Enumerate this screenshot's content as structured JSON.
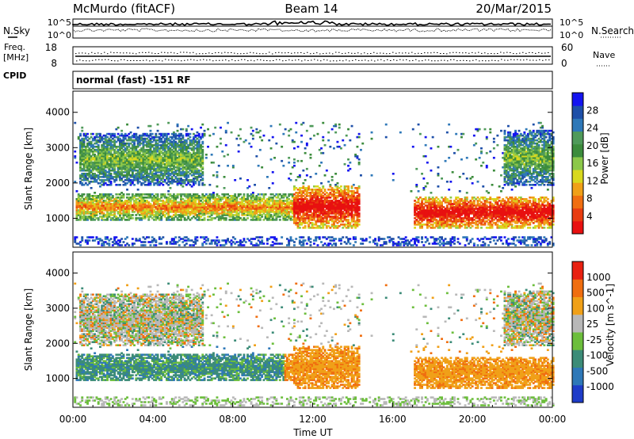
{
  "header": {
    "site": "McMurdo (fitACF)",
    "beam": "Beam 14",
    "date": "20/Mar/2015"
  },
  "noise_panel": {
    "left_label": "N.Sky",
    "right_label": "N.Search",
    "ticks_left": [
      "10^5",
      "10^0"
    ],
    "ticks_right": [
      "10^5",
      "10^0"
    ],
    "range": [
      1,
      100000
    ],
    "log": true
  },
  "freq_panel": {
    "left_label_1": "Freq.",
    "left_label_2": "[MHz]",
    "right_label": "Nave",
    "ticks_left": [
      "18",
      "8"
    ],
    "ticks_right": [
      "60",
      "0"
    ],
    "freq_range": [
      8,
      18
    ],
    "nave_range": [
      0,
      60
    ]
  },
  "cpid": {
    "label": "CPID",
    "value": "normal (fast) -151 RF"
  },
  "chart_data": [
    {
      "type": "heatmap",
      "name": "power",
      "xlabel": "",
      "ylabel": "Slant Range [km]",
      "xlim": [
        "00:00",
        "24:00"
      ],
      "ylim": [
        180,
        4600
      ],
      "y_ticks": [
        "1000",
        "2000",
        "3000",
        "4000"
      ],
      "colorbar": {
        "label": "Power [dB]",
        "ticks": [
          "4",
          "8",
          "12",
          "16",
          "20",
          "24",
          "28"
        ],
        "colors": [
          "#1414f0",
          "#1e4fa8",
          "#2e78b8",
          "#4f9a5a",
          "#3c8c3c",
          "#8cc84a",
          "#d8d81e",
          "#f0a018",
          "#f06e10",
          "#e83c10",
          "#e81010"
        ]
      },
      "bands": [
        {
          "t0": 0.1,
          "t1": 11.0,
          "r0": 900,
          "r1": 1700,
          "level": "mid-high"
        },
        {
          "t0": 11.0,
          "t1": 14.3,
          "r0": 700,
          "r1": 1900,
          "level": "high"
        },
        {
          "t0": 17.0,
          "t1": 24.0,
          "r0": 700,
          "r1": 1600,
          "level": "high"
        },
        {
          "t0": 0.3,
          "t1": 6.5,
          "r0": 1900,
          "r1": 3400,
          "level": "low-mid"
        },
        {
          "t0": 21.5,
          "t1": 24.0,
          "r0": 1900,
          "r1": 3500,
          "level": "low-mid"
        }
      ]
    },
    {
      "type": "heatmap",
      "name": "velocity",
      "xlabel": "Time UT",
      "ylabel": "Slant Range [km]",
      "xlim": [
        "00:00",
        "24:00"
      ],
      "ylim": [
        180,
        4600
      ],
      "x_ticks": [
        "00:00",
        "04:00",
        "08:00",
        "12:00",
        "16:00",
        "20:00",
        "00:00"
      ],
      "y_ticks": [
        "1000",
        "2000",
        "3000",
        "4000"
      ],
      "colorbar": {
        "label": "Velocity [m s^-1]",
        "ticks": [
          "1000",
          "500",
          "100",
          "25",
          "-25",
          "-100",
          "-500",
          "-1000"
        ],
        "colors": [
          "#1e3cc8",
          "#2e78b8",
          "#3c8c78",
          "#6cbe3c",
          "#b8b8b8",
          "#f0a018",
          "#f06e10",
          "#e82010"
        ]
      }
    }
  ]
}
